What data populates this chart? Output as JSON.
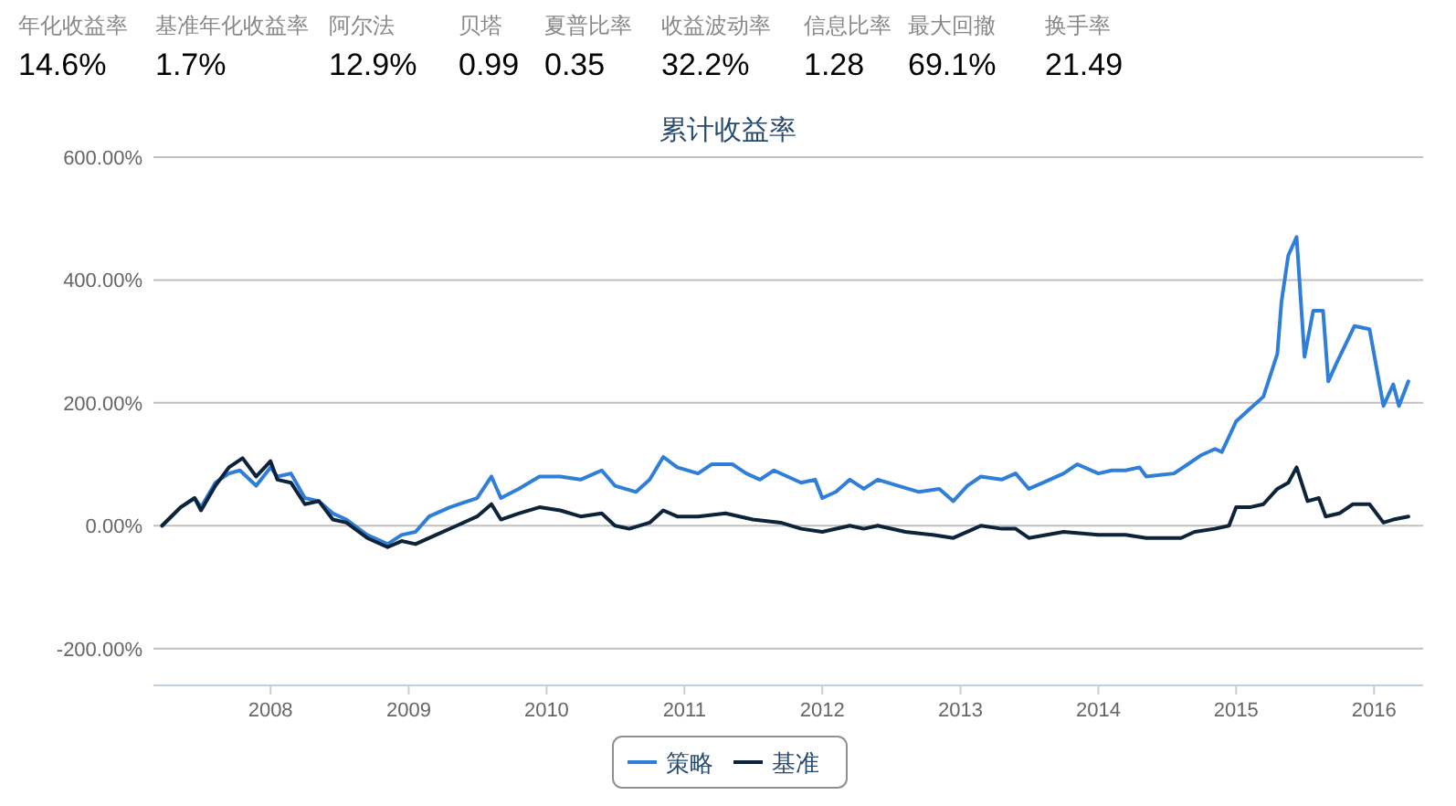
{
  "chart_data": [
    {
      "type": "other",
      "annotations": [
        "年化收益率",
        "14.6%",
        "基准年化收益率",
        "1.7%",
        "阿尔法",
        "12.9%",
        "贝塔",
        "0.99",
        "夏普比率",
        "0.35",
        "收益波动率",
        "32.2%",
        "信息比率",
        "1.28",
        "最大回撤",
        "69.1%",
        "换手率",
        "21.49"
      ]
    },
    {
      "type": "line",
      "title": "累计收益率",
      "xlim": [
        "2007-02-25",
        "2016-05-10"
      ],
      "xticks": [
        "2008",
        "2009",
        "2010",
        "2011",
        "2012",
        "2013",
        "2014",
        "2015",
        "2016"
      ],
      "ylim": [
        -260,
        600
      ],
      "yticks": [
        {
          "value": 600,
          "label": "600.00%"
        },
        {
          "value": 400,
          "label": "400.00%"
        },
        {
          "value": 200,
          "label": "200.00%"
        },
        {
          "value": 0,
          "label": "0.00%"
        },
        {
          "value": -200,
          "label": "-200.00%"
        }
      ],
      "grid": "y",
      "legend": "bottom",
      "series": [
        {
          "name": "策略",
          "color": "#2f7ed8",
          "x": [
            "2007-03-20",
            "2007-05-08",
            "2007-06-14",
            "2007-07-01",
            "2007-08-08",
            "2007-09-13",
            "2007-10-12",
            "2007-11-24",
            "2008-01-01",
            "2008-01-19",
            "2008-02-24",
            "2008-04-01",
            "2008-05-08",
            "2008-06-14",
            "2008-07-20",
            "2008-09-13",
            "2008-11-06",
            "2008-12-13",
            "2009-01-19",
            "2009-02-24",
            "2009-04-20",
            "2009-07-01",
            "2009-08-08",
            "2009-09-02",
            "2009-10-19",
            "2009-12-13",
            "2010-02-06",
            "2010-04-01",
            "2010-05-27",
            "2010-07-01",
            "2010-08-26",
            "2010-10-01",
            "2010-11-06",
            "2010-12-13",
            "2011-02-06",
            "2011-03-14",
            "2011-05-08",
            "2011-06-14",
            "2011-07-20",
            "2011-08-26",
            "2011-10-01",
            "2011-11-06",
            "2011-12-13",
            "2012-01-01",
            "2012-02-06",
            "2012-03-14",
            "2012-04-20",
            "2012-05-27",
            "2012-07-20",
            "2012-09-13",
            "2012-11-06",
            "2012-12-13",
            "2013-01-19",
            "2013-02-24",
            "2013-04-20",
            "2013-05-27",
            "2013-07-01",
            "2013-08-08",
            "2013-10-01",
            "2013-11-06",
            "2014-01-01",
            "2014-02-06",
            "2014-03-14",
            "2014-04-20",
            "2014-05-08",
            "2014-07-20",
            "2014-08-26",
            "2014-10-01",
            "2014-11-06",
            "2014-11-24",
            "2015-01-01",
            "2015-02-06",
            "2015-03-14",
            "2015-04-20",
            "2015-05-01",
            "2015-05-19",
            "2015-06-10",
            "2015-07-01",
            "2015-07-24",
            "2015-08-19",
            "2015-09-02",
            "2015-09-24",
            "2015-11-10",
            "2015-12-20",
            "2016-01-26",
            "2016-02-21",
            "2016-03-07",
            "2016-04-01"
          ],
          "values": [
            0,
            30,
            45,
            30,
            70,
            85,
            90,
            65,
            95,
            80,
            85,
            45,
            40,
            20,
            10,
            -15,
            -30,
            -15,
            -10,
            15,
            30,
            45,
            80,
            45,
            60,
            80,
            80,
            75,
            90,
            65,
            55,
            75,
            112,
            95,
            85,
            100,
            100,
            85,
            75,
            90,
            80,
            70,
            75,
            45,
            55,
            75,
            60,
            75,
            65,
            55,
            60,
            40,
            65,
            80,
            75,
            85,
            60,
            70,
            85,
            100,
            85,
            90,
            90,
            95,
            80,
            85,
            100,
            115,
            125,
            120,
            170,
            190,
            210,
            280,
            365,
            440,
            470,
            275,
            350,
            350,
            235,
            265,
            325,
            320,
            195,
            230,
            195,
            235
          ]
        },
        {
          "name": "基准",
          "color": "#0d233a",
          "x": [
            "2007-03-20",
            "2007-05-08",
            "2007-06-14",
            "2007-07-01",
            "2007-08-08",
            "2007-09-13",
            "2007-10-19",
            "2007-11-24",
            "2008-01-01",
            "2008-01-19",
            "2008-02-24",
            "2008-04-01",
            "2008-05-08",
            "2008-06-14",
            "2008-07-20",
            "2008-09-13",
            "2008-11-06",
            "2008-12-13",
            "2009-01-19",
            "2009-03-14",
            "2009-05-08",
            "2009-07-01",
            "2009-08-08",
            "2009-09-02",
            "2009-10-19",
            "2009-12-13",
            "2010-02-06",
            "2010-04-01",
            "2010-05-27",
            "2010-07-01",
            "2010-08-08",
            "2010-10-01",
            "2010-11-06",
            "2010-12-13",
            "2011-02-06",
            "2011-04-20",
            "2011-07-01",
            "2011-09-13",
            "2011-11-06",
            "2012-01-01",
            "2012-03-14",
            "2012-04-20",
            "2012-05-27",
            "2012-08-08",
            "2012-10-19",
            "2012-12-13",
            "2013-02-06",
            "2013-02-24",
            "2013-04-20",
            "2013-05-27",
            "2013-07-01",
            "2013-10-01",
            "2014-01-01",
            "2014-03-14",
            "2014-05-08",
            "2014-07-01",
            "2014-08-08",
            "2014-09-13",
            "2014-11-06",
            "2014-12-13",
            "2015-01-01",
            "2015-02-06",
            "2015-03-14",
            "2015-04-20",
            "2015-05-19",
            "2015-06-10",
            "2015-07-09",
            "2015-08-08",
            "2015-08-26",
            "2015-10-01",
            "2015-11-06",
            "2015-12-20",
            "2016-01-26",
            "2016-02-21",
            "2016-04-01"
          ],
          "values": [
            0,
            30,
            45,
            25,
            65,
            95,
            110,
            80,
            105,
            75,
            70,
            35,
            40,
            10,
            5,
            -20,
            -35,
            -25,
            -30,
            -15,
            0,
            15,
            35,
            10,
            20,
            30,
            25,
            15,
            20,
            0,
            -5,
            5,
            25,
            15,
            15,
            20,
            10,
            5,
            -5,
            -10,
            0,
            -5,
            0,
            -10,
            -15,
            -20,
            -5,
            0,
            -5,
            -5,
            -20,
            -10,
            -15,
            -15,
            -20,
            -20,
            -20,
            -10,
            -5,
            0,
            30,
            30,
            35,
            60,
            70,
            95,
            40,
            45,
            15,
            20,
            35,
            35,
            5,
            10,
            15
          ]
        }
      ]
    }
  ]
}
